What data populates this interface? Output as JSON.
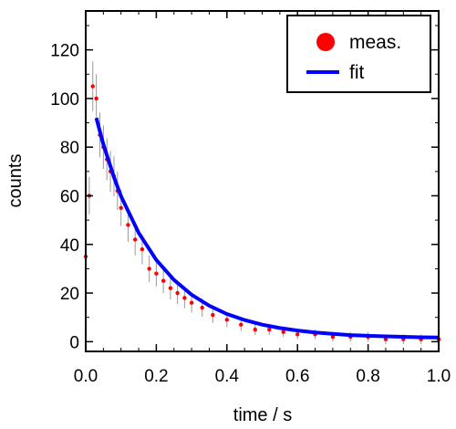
{
  "chart_data": {
    "type": "scatter",
    "xlabel": "time / s",
    "ylabel": "counts",
    "xlim": [
      0.0,
      1.0
    ],
    "ylim": [
      -4,
      136
    ],
    "x_ticks": [
      {
        "value": 0.0,
        "label": "0.0"
      },
      {
        "value": 0.2,
        "label": "0.2"
      },
      {
        "value": 0.4,
        "label": "0.4"
      },
      {
        "value": 0.6,
        "label": "0.6"
      },
      {
        "value": 0.8,
        "label": "0.8"
      },
      {
        "value": 1.0,
        "label": "1.0"
      }
    ],
    "y_ticks": [
      {
        "value": 0,
        "label": "0"
      },
      {
        "value": 20,
        "label": "20"
      },
      {
        "value": 40,
        "label": "40"
      },
      {
        "value": 60,
        "label": "60"
      },
      {
        "value": 80,
        "label": "80"
      },
      {
        "value": 100,
        "label": "100"
      },
      {
        "value": 120,
        "label": "120"
      }
    ],
    "grid": false,
    "legend_position": "top-right",
    "series": [
      {
        "name": "meas.",
        "kind": "points-with-errorbars",
        "color": "#ff0000",
        "errorbar_color": "#999999",
        "x": [
          0.0,
          0.01,
          0.02,
          0.03,
          0.04,
          0.05,
          0.06,
          0.07,
          0.08,
          0.09,
          0.1,
          0.12,
          0.14,
          0.16,
          0.18,
          0.2,
          0.22,
          0.24,
          0.26,
          0.28,
          0.3,
          0.33,
          0.36,
          0.4,
          0.44,
          0.48,
          0.52,
          0.56,
          0.6,
          0.65,
          0.7,
          0.75,
          0.8,
          0.85,
          0.9,
          0.95,
          1.0
        ],
        "y": [
          35,
          60,
          105,
          100,
          85,
          80,
          75,
          70,
          68,
          62,
          55,
          48,
          42,
          38,
          30,
          28,
          25,
          22,
          20,
          18,
          16,
          14,
          11,
          9,
          7,
          5,
          5,
          4,
          3,
          3,
          2,
          2,
          2,
          1,
          1,
          1,
          1
        ]
      },
      {
        "name": "fit",
        "kind": "line",
        "color": "#0000ff",
        "x": [
          0.03,
          0.05,
          0.08,
          0.1,
          0.15,
          0.2,
          0.25,
          0.3,
          0.35,
          0.4,
          0.45,
          0.5,
          0.55,
          0.6,
          0.65,
          0.7,
          0.75,
          0.8,
          0.85,
          0.9,
          0.95,
          1.0
        ],
        "y": [
          92.0,
          81.2,
          67.6,
          59.8,
          44.7,
          33.6,
          25.4,
          19.3,
          14.8,
          11.4,
          8.9,
          7.0,
          5.6,
          4.6,
          3.8,
          3.2,
          2.7,
          2.4,
          2.2,
          2.0,
          1.8,
          1.7
        ]
      }
    ]
  }
}
